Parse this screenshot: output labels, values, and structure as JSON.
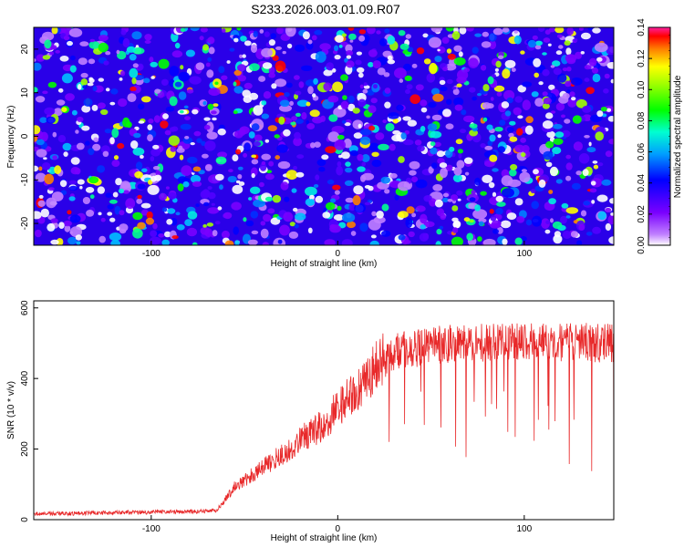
{
  "title": "S233.2026.003.01.09.R07",
  "colors": {
    "series_line": "#e8292a",
    "axis": "#000000"
  },
  "chart_data": [
    {
      "type": "heatmap",
      "xlabel": "Height of straight line (km)",
      "ylabel": "Frequency (Hz)",
      "xlim": [
        -163,
        148
      ],
      "ylim": [
        -25,
        25
      ],
      "x_ticks": [
        -100,
        0,
        100
      ],
      "y_ticks": [
        -20,
        -10,
        0,
        10,
        20
      ],
      "colorbar": {
        "label": "Normalized spectral amplitude",
        "range": [
          0,
          0.14
        ],
        "ticks": [
          "0.00",
          "0.02",
          "0.04",
          "0.06",
          "0.08",
          "0.10",
          "0.12",
          "0.14"
        ]
      }
    },
    {
      "type": "line",
      "xlabel": "Height of straight line (km)",
      "ylabel": "SNR (10 * v/v)",
      "xlim": [
        -163,
        148
      ],
      "ylim": [
        0,
        620
      ],
      "x_ticks": [
        -100,
        0,
        100
      ],
      "y_ticks": [
        0,
        200,
        400,
        600
      ],
      "series": [
        {
          "name": "SNR",
          "x": [
            -163,
            -140,
            -120,
            -100,
            -80,
            -65,
            -60,
            -55,
            -50,
            -45,
            -40,
            -35,
            -30,
            -25,
            -20,
            -15,
            -10,
            -5,
            0,
            5,
            10,
            15,
            20,
            25,
            30,
            40,
            50,
            60,
            70,
            80,
            90,
            100,
            110,
            120,
            130,
            140,
            148
          ],
          "values": [
            16,
            18,
            20,
            21,
            23,
            26,
            60,
            95,
            110,
            130,
            150,
            165,
            185,
            205,
            225,
            245,
            260,
            285,
            315,
            340,
            365,
            400,
            430,
            455,
            475,
            485,
            490,
            500,
            505,
            500,
            505,
            500,
            505,
            500,
            505,
            500,
            500
          ]
        }
      ]
    }
  ]
}
